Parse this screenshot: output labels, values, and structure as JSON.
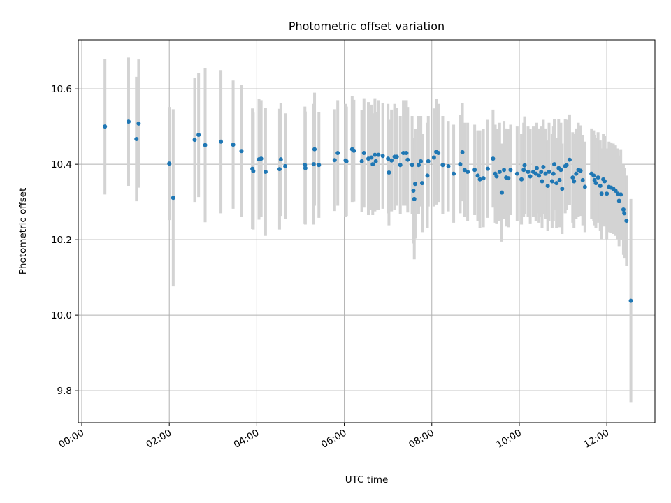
{
  "chart_data": {
    "type": "scatter",
    "title": "Photometric offset variation",
    "xlabel": "UTC time",
    "ylabel": "Photometric offset",
    "x_unit": "hours UTC",
    "xlim": [
      -0.08,
      13.1
    ],
    "ylim": [
      9.715,
      10.73
    ],
    "grid": true,
    "x_ticks": [
      {
        "value": 0,
        "label": "00:00"
      },
      {
        "value": 2,
        "label": "02:00"
      },
      {
        "value": 4,
        "label": "04:00"
      },
      {
        "value": 6,
        "label": "06:00"
      },
      {
        "value": 8,
        "label": "08:00"
      },
      {
        "value": 10,
        "label": "10:00"
      },
      {
        "value": 12,
        "label": "12:00"
      }
    ],
    "y_ticks": [
      {
        "value": 9.8,
        "label": "9.8"
      },
      {
        "value": 10.0,
        "label": "10.0"
      },
      {
        "value": 10.2,
        "label": "10.2"
      },
      {
        "value": 10.4,
        "label": "10.4"
      },
      {
        "value": 10.6,
        "label": "10.6"
      }
    ],
    "colors": {
      "marker": "#1f77b4",
      "errorbar": "#d3d3d3",
      "grid": "#b0b0b0",
      "axes": "#000000"
    },
    "series": [
      {
        "name": "offset",
        "points": [
          [
            0.53,
            10.5,
            0.18
          ],
          [
            1.07,
            10.513,
            0.17
          ],
          [
            1.25,
            10.467,
            0.165
          ],
          [
            1.3,
            10.508,
            0.17
          ],
          [
            2.0,
            10.402,
            0.15
          ],
          [
            2.09,
            10.311,
            0.235
          ],
          [
            2.58,
            10.465,
            0.165
          ],
          [
            2.67,
            10.478,
            0.165
          ],
          [
            2.82,
            10.451,
            0.205
          ],
          [
            3.18,
            10.46,
            0.19
          ],
          [
            3.46,
            10.452,
            0.17
          ],
          [
            3.65,
            10.435,
            0.175
          ],
          [
            3.9,
            10.388,
            0.16
          ],
          [
            3.92,
            10.382,
            0.155
          ],
          [
            4.05,
            10.413,
            0.16
          ],
          [
            4.1,
            10.415,
            0.155
          ],
          [
            4.2,
            10.38,
            0.17
          ],
          [
            4.52,
            10.387,
            0.16
          ],
          [
            4.55,
            10.413,
            0.15
          ],
          [
            4.65,
            10.395,
            0.14
          ],
          [
            5.1,
            10.398,
            0.155
          ],
          [
            5.11,
            10.39,
            0.15
          ],
          [
            5.3,
            10.4,
            0.16
          ],
          [
            5.32,
            10.44,
            0.15
          ],
          [
            5.42,
            10.398,
            0.14
          ],
          [
            5.78,
            10.411,
            0.135
          ],
          [
            5.85,
            10.43,
            0.14
          ],
          [
            6.03,
            10.41,
            0.15
          ],
          [
            6.05,
            10.408,
            0.145
          ],
          [
            6.18,
            10.44,
            0.14
          ],
          [
            6.22,
            10.436,
            0.135
          ],
          [
            6.4,
            10.408,
            0.135
          ],
          [
            6.45,
            10.43,
            0.145
          ],
          [
            6.55,
            10.415,
            0.15
          ],
          [
            6.62,
            10.418,
            0.14
          ],
          [
            6.65,
            10.4,
            0.135
          ],
          [
            6.7,
            10.425,
            0.15
          ],
          [
            6.72,
            10.408,
            0.13
          ],
          [
            6.78,
            10.425,
            0.145
          ],
          [
            6.88,
            10.422,
            0.14
          ],
          [
            7.0,
            10.415,
            0.145
          ],
          [
            7.02,
            10.378,
            0.14
          ],
          [
            7.08,
            10.41,
            0.135
          ],
          [
            7.15,
            10.42,
            0.14
          ],
          [
            7.2,
            10.42,
            0.13
          ],
          [
            7.28,
            10.398,
            0.13
          ],
          [
            7.35,
            10.43,
            0.14
          ],
          [
            7.42,
            10.43,
            0.14
          ],
          [
            7.45,
            10.412,
            0.14
          ],
          [
            7.55,
            10.398,
            0.13
          ],
          [
            7.58,
            10.33,
            0.14
          ],
          [
            7.6,
            10.308,
            0.16
          ],
          [
            7.62,
            10.348,
            0.145
          ],
          [
            7.7,
            10.398,
            0.13
          ],
          [
            7.75,
            10.408,
            0.12
          ],
          [
            7.78,
            10.35,
            0.13
          ],
          [
            7.9,
            10.37,
            0.14
          ],
          [
            7.92,
            10.408,
            0.12
          ],
          [
            8.05,
            10.418,
            0.13
          ],
          [
            8.1,
            10.433,
            0.14
          ],
          [
            8.15,
            10.43,
            0.13
          ],
          [
            8.25,
            10.398,
            0.13
          ],
          [
            8.38,
            10.395,
            0.12
          ],
          [
            8.5,
            10.375,
            0.13
          ],
          [
            8.65,
            10.4,
            0.13
          ],
          [
            8.7,
            10.432,
            0.13
          ],
          [
            8.75,
            10.385,
            0.125
          ],
          [
            8.82,
            10.38,
            0.13
          ],
          [
            8.98,
            10.385,
            0.12
          ],
          [
            9.05,
            10.37,
            0.12
          ],
          [
            9.1,
            10.36,
            0.13
          ],
          [
            9.18,
            10.363,
            0.13
          ],
          [
            9.28,
            10.388,
            0.13
          ],
          [
            9.4,
            10.415,
            0.13
          ],
          [
            9.45,
            10.375,
            0.13
          ],
          [
            9.48,
            10.368,
            0.125
          ],
          [
            9.55,
            10.38,
            0.13
          ],
          [
            9.6,
            10.325,
            0.13
          ],
          [
            9.65,
            10.385,
            0.13
          ],
          [
            9.7,
            10.365,
            0.13
          ],
          [
            9.75,
            10.363,
            0.13
          ],
          [
            9.8,
            10.385,
            0.12
          ],
          [
            9.95,
            10.375,
            0.125
          ],
          [
            10.05,
            10.36,
            0.12
          ],
          [
            10.1,
            10.385,
            0.125
          ],
          [
            10.12,
            10.397,
            0.13
          ],
          [
            10.2,
            10.38,
            0.12
          ],
          [
            10.25,
            10.368,
            0.125
          ],
          [
            10.32,
            10.38,
            0.12
          ],
          [
            10.38,
            10.375,
            0.125
          ],
          [
            10.4,
            10.39,
            0.12
          ],
          [
            10.45,
            10.37,
            0.125
          ],
          [
            10.5,
            10.38,
            0.12
          ],
          [
            10.52,
            10.355,
            0.125
          ],
          [
            10.55,
            10.393,
            0.125
          ],
          [
            10.6,
            10.375,
            0.12
          ],
          [
            10.65,
            10.343,
            0.12
          ],
          [
            10.68,
            10.38,
            0.13
          ],
          [
            10.75,
            10.355,
            0.125
          ],
          [
            10.78,
            10.375,
            0.125
          ],
          [
            10.8,
            10.4,
            0.12
          ],
          [
            10.85,
            10.35,
            0.12
          ],
          [
            10.9,
            10.39,
            0.13
          ],
          [
            10.92,
            10.358,
            0.125
          ],
          [
            10.95,
            10.385,
            0.125
          ],
          [
            10.98,
            10.335,
            0.12
          ],
          [
            11.05,
            10.395,
            0.125
          ],
          [
            11.08,
            10.398,
            0.12
          ],
          [
            11.15,
            10.412,
            0.12
          ],
          [
            11.22,
            10.365,
            0.12
          ],
          [
            11.25,
            10.355,
            0.125
          ],
          [
            11.3,
            10.375,
            0.12
          ],
          [
            11.35,
            10.385,
            0.125
          ],
          [
            11.4,
            10.383,
            0.12
          ],
          [
            11.45,
            10.358,
            0.12
          ],
          [
            11.5,
            10.34,
            0.12
          ],
          [
            11.65,
            10.375,
            0.12
          ],
          [
            11.7,
            10.37,
            0.12
          ],
          [
            11.72,
            10.358,
            0.12
          ],
          [
            11.75,
            10.35,
            0.12
          ],
          [
            11.8,
            10.365,
            0.12
          ],
          [
            11.85,
            10.343,
            0.12
          ],
          [
            11.88,
            10.322,
            0.12
          ],
          [
            11.92,
            10.36,
            0.12
          ],
          [
            11.95,
            10.355,
            0.12
          ],
          [
            12.0,
            10.322,
            0.12
          ],
          [
            12.05,
            10.34,
            0.12
          ],
          [
            12.1,
            10.338,
            0.12
          ],
          [
            12.15,
            10.335,
            0.12
          ],
          [
            12.2,
            10.33,
            0.12
          ],
          [
            12.25,
            10.322,
            0.12
          ],
          [
            12.28,
            10.303,
            0.12
          ],
          [
            12.32,
            10.32,
            0.12
          ],
          [
            12.38,
            10.28,
            0.12
          ],
          [
            12.4,
            10.27,
            0.12
          ],
          [
            12.45,
            10.25,
            0.12
          ],
          [
            12.55,
            10.038,
            0.27
          ]
        ]
      }
    ]
  }
}
